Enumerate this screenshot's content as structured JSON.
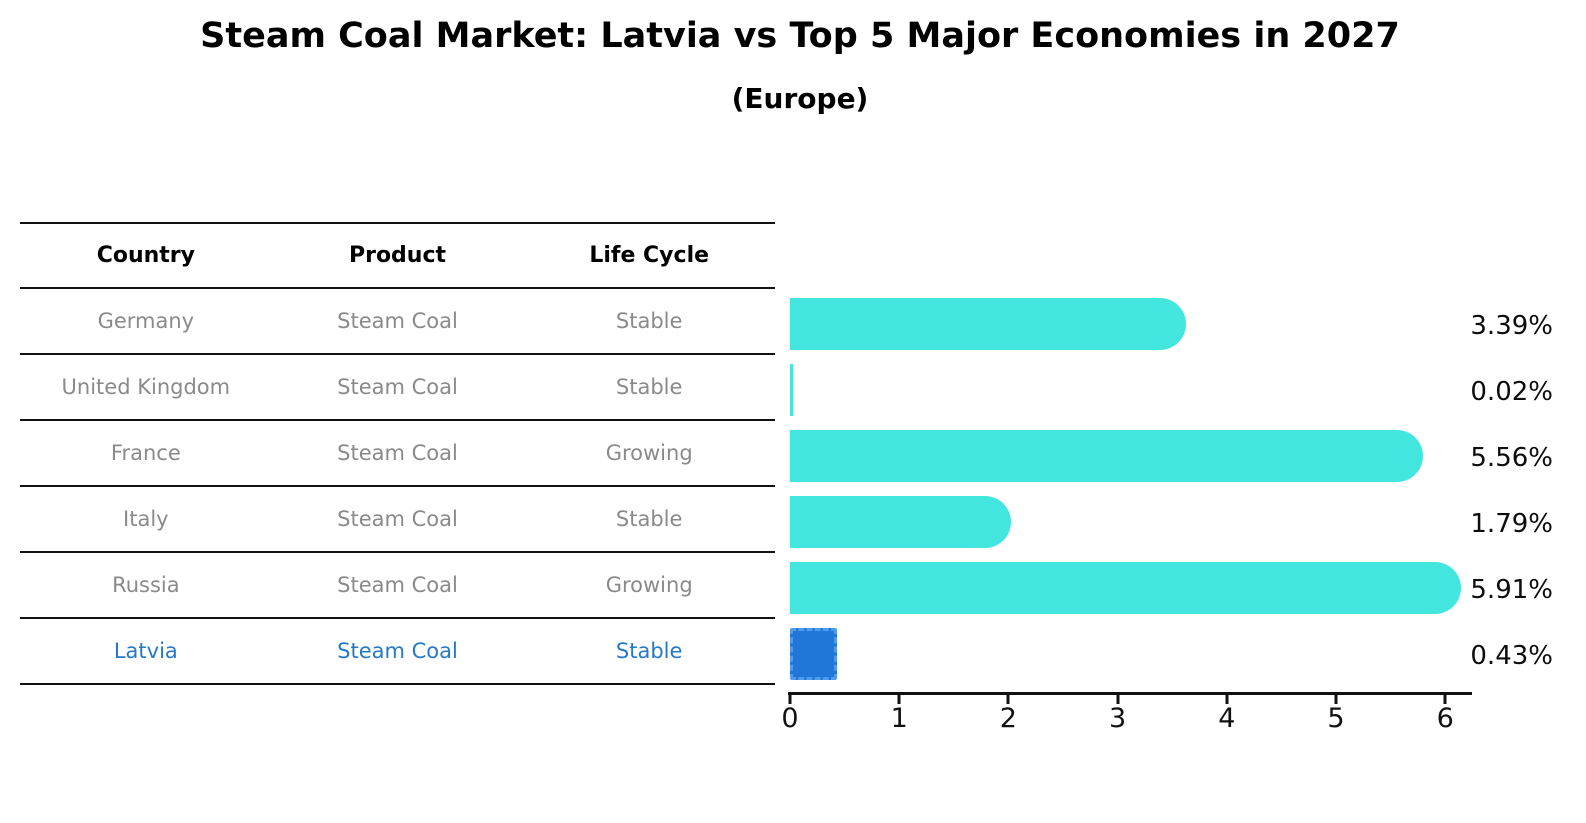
{
  "title": "Steam Coal Market: Latvia vs Top 5 Major Economies in 2027",
  "subtitle": "(Europe)",
  "table": {
    "headers": [
      "Country",
      "Product",
      "Life Cycle"
    ],
    "rows": [
      {
        "country": "Germany",
        "product": "Steam Coal",
        "life_cycle": "Stable",
        "highlight": false
      },
      {
        "country": "United Kingdom",
        "product": "Steam Coal",
        "life_cycle": "Stable",
        "highlight": false
      },
      {
        "country": "France",
        "product": "Steam Coal",
        "life_cycle": "Growing",
        "highlight": false
      },
      {
        "country": "Italy",
        "product": "Steam Coal",
        "life_cycle": "Stable",
        "highlight": false
      },
      {
        "country": "Russia",
        "product": "Steam Coal",
        "life_cycle": "Growing",
        "highlight": false
      },
      {
        "country": "Latvia",
        "product": "Steam Coal",
        "life_cycle": "Stable",
        "highlight": true
      }
    ]
  },
  "chart_data": {
    "type": "bar",
    "orientation": "horizontal",
    "title": "Steam Coal Market: Latvia vs Top 5 Major Economies in 2027",
    "subtitle": "(Europe)",
    "categories": [
      "Germany",
      "United Kingdom",
      "France",
      "Italy",
      "Russia",
      "Latvia"
    ],
    "values": [
      3.39,
      0.02,
      5.56,
      1.79,
      5.91,
      0.43
    ],
    "value_labels": [
      "3.39%",
      "0.02%",
      "5.56%",
      "1.79%",
      "5.91%",
      "0.43%"
    ],
    "xticks": [
      "0",
      "1",
      "2",
      "3",
      "4",
      "5",
      "6"
    ],
    "xlim": [
      0,
      6.25
    ],
    "grid": false,
    "legend": false,
    "highlight_index": 5,
    "colors": {
      "bar": "#43e6de",
      "highlight_bar": "#2077d8",
      "highlight_text": "#2679c8",
      "row_text": "#8a8a8a",
      "header_text": "#000000",
      "value_label": "#0d0d0d"
    }
  }
}
